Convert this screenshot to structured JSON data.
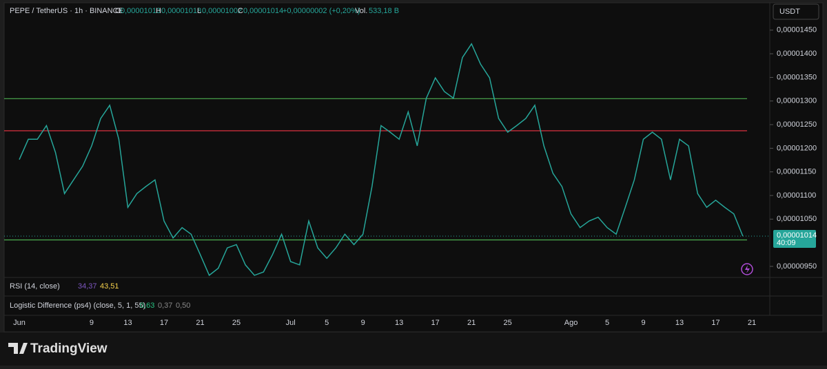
{
  "header": {
    "symbol": "PEPE / TetherUS · 1h · BINANCE",
    "o_label": "O",
    "o": "0,00001013",
    "h_label": "H",
    "h": "0,00001018",
    "l_label": "L",
    "l": "0,00001002",
    "c_label": "C",
    "c": "0,00001014",
    "change": "+0,00000002 (+0,20%)",
    "vol_label": "Vol.",
    "vol": "533,18 B",
    "currency": "USDT"
  },
  "indicators": {
    "rsi_title": "RSI (14, close)",
    "rsi_v1": "34,37",
    "rsi_v2": "43,51",
    "ld_title": "Logistic Difference (ps4) (close, 5, 1, 55)",
    "ld_v1": "0,63",
    "ld_v2": "0,37",
    "ld_v3": "0,50"
  },
  "footer": {
    "brand": "TradingView"
  },
  "chart_data": {
    "type": "line",
    "color": "#26a69a",
    "categories": [
      "Jun",
      null,
      null,
      null,
      null,
      null,
      null,
      null,
      "9",
      null,
      null,
      null,
      "13",
      null,
      null,
      null,
      "17",
      null,
      null,
      null,
      "21",
      null,
      null,
      null,
      "25",
      null,
      null,
      null,
      null,
      null,
      "Jul",
      null,
      null,
      null,
      "5",
      null,
      null,
      null,
      "9",
      null,
      null,
      null,
      "13",
      null,
      null,
      null,
      "17",
      null,
      null,
      null,
      "21",
      null,
      null,
      null,
      "25",
      null,
      null,
      null,
      null,
      null,
      null,
      "Ago",
      null,
      null,
      null,
      "5",
      null,
      null,
      null,
      "9",
      null,
      null,
      null,
      "13",
      null,
      null,
      null,
      "17",
      null,
      null,
      null,
      "21"
    ],
    "values": [
      1.176e-05,
      1.219e-05,
      1.219e-05,
      1.248e-05,
      1.191e-05,
      1.104e-05,
      1.133e-05,
      1.162e-05,
      1.205e-05,
      1.263e-05,
      1.291e-05,
      1.219e-05,
      1.075e-05,
      1.104e-05,
      1.119e-05,
      1.133e-05,
      1.046e-05,
      1.01e-05,
      1.032e-05,
      1.018e-05,
      9.75e-06,
      9.31e-06,
      9.46e-06,
      9.89e-06,
      9.96e-06,
      9.53e-06,
      9.31e-06,
      9.38e-06,
      9.75e-06,
      1.018e-05,
      9.6e-06,
      9.53e-06,
      1.046e-05,
      9.89e-06,
      9.67e-06,
      9.89e-06,
      1.018e-05,
      9.96e-06,
      1.018e-05,
      1.119e-05,
      1.248e-05,
      1.234e-05,
      1.219e-05,
      1.277e-05,
      1.205e-05,
      1.306e-05,
      1.349e-05,
      1.32e-05,
      1.306e-05,
      1.392e-05,
      1.421e-05,
      1.378e-05,
      1.349e-05,
      1.263e-05,
      1.234e-05,
      1.248e-05,
      1.263e-05,
      1.291e-05,
      1.205e-05,
      1.147e-05,
      1.119e-05,
      1.061e-05,
      1.032e-05,
      1.046e-05,
      1.054e-05,
      1.032e-05,
      1.018e-05,
      1.075e-05,
      1.133e-05,
      1.219e-05,
      1.234e-05,
      1.219e-05,
      1.133e-05,
      1.219e-05,
      1.205e-05,
      1.104e-05,
      1.075e-05,
      1.09e-05,
      1.075e-05,
      1.061e-05,
      1.014e-05,
      null
    ],
    "ylim": [
      9.28e-06,
      1.508e-05
    ],
    "yticks": [
      {
        "value": 1.45e-05,
        "label": "0,00001450"
      },
      {
        "value": 1.4e-05,
        "label": "0,00001400"
      },
      {
        "value": 1.35e-05,
        "label": "0,00001350"
      },
      {
        "value": 1.3e-05,
        "label": "0,00001300"
      },
      {
        "value": 1.25e-05,
        "label": "0,00001250"
      },
      {
        "value": 1.2e-05,
        "label": "0,00001200"
      },
      {
        "value": 1.15e-05,
        "label": "0,00001150"
      },
      {
        "value": 1.1e-05,
        "label": "0,00001100"
      },
      {
        "value": 1.05e-05,
        "label": "0,00001050"
      },
      {
        "value": 9.5e-06,
        "label": "0,00000950"
      }
    ],
    "hlines": [
      {
        "value": 1.305e-05,
        "color": "#4caf50"
      },
      {
        "value": 1.237e-05,
        "color": "#f23645"
      },
      {
        "value": 1.006e-05,
        "color": "#4caf50"
      }
    ],
    "last_price": {
      "value": 1.014e-05,
      "label": "0,00001014"
    },
    "countdown": "40:09"
  }
}
